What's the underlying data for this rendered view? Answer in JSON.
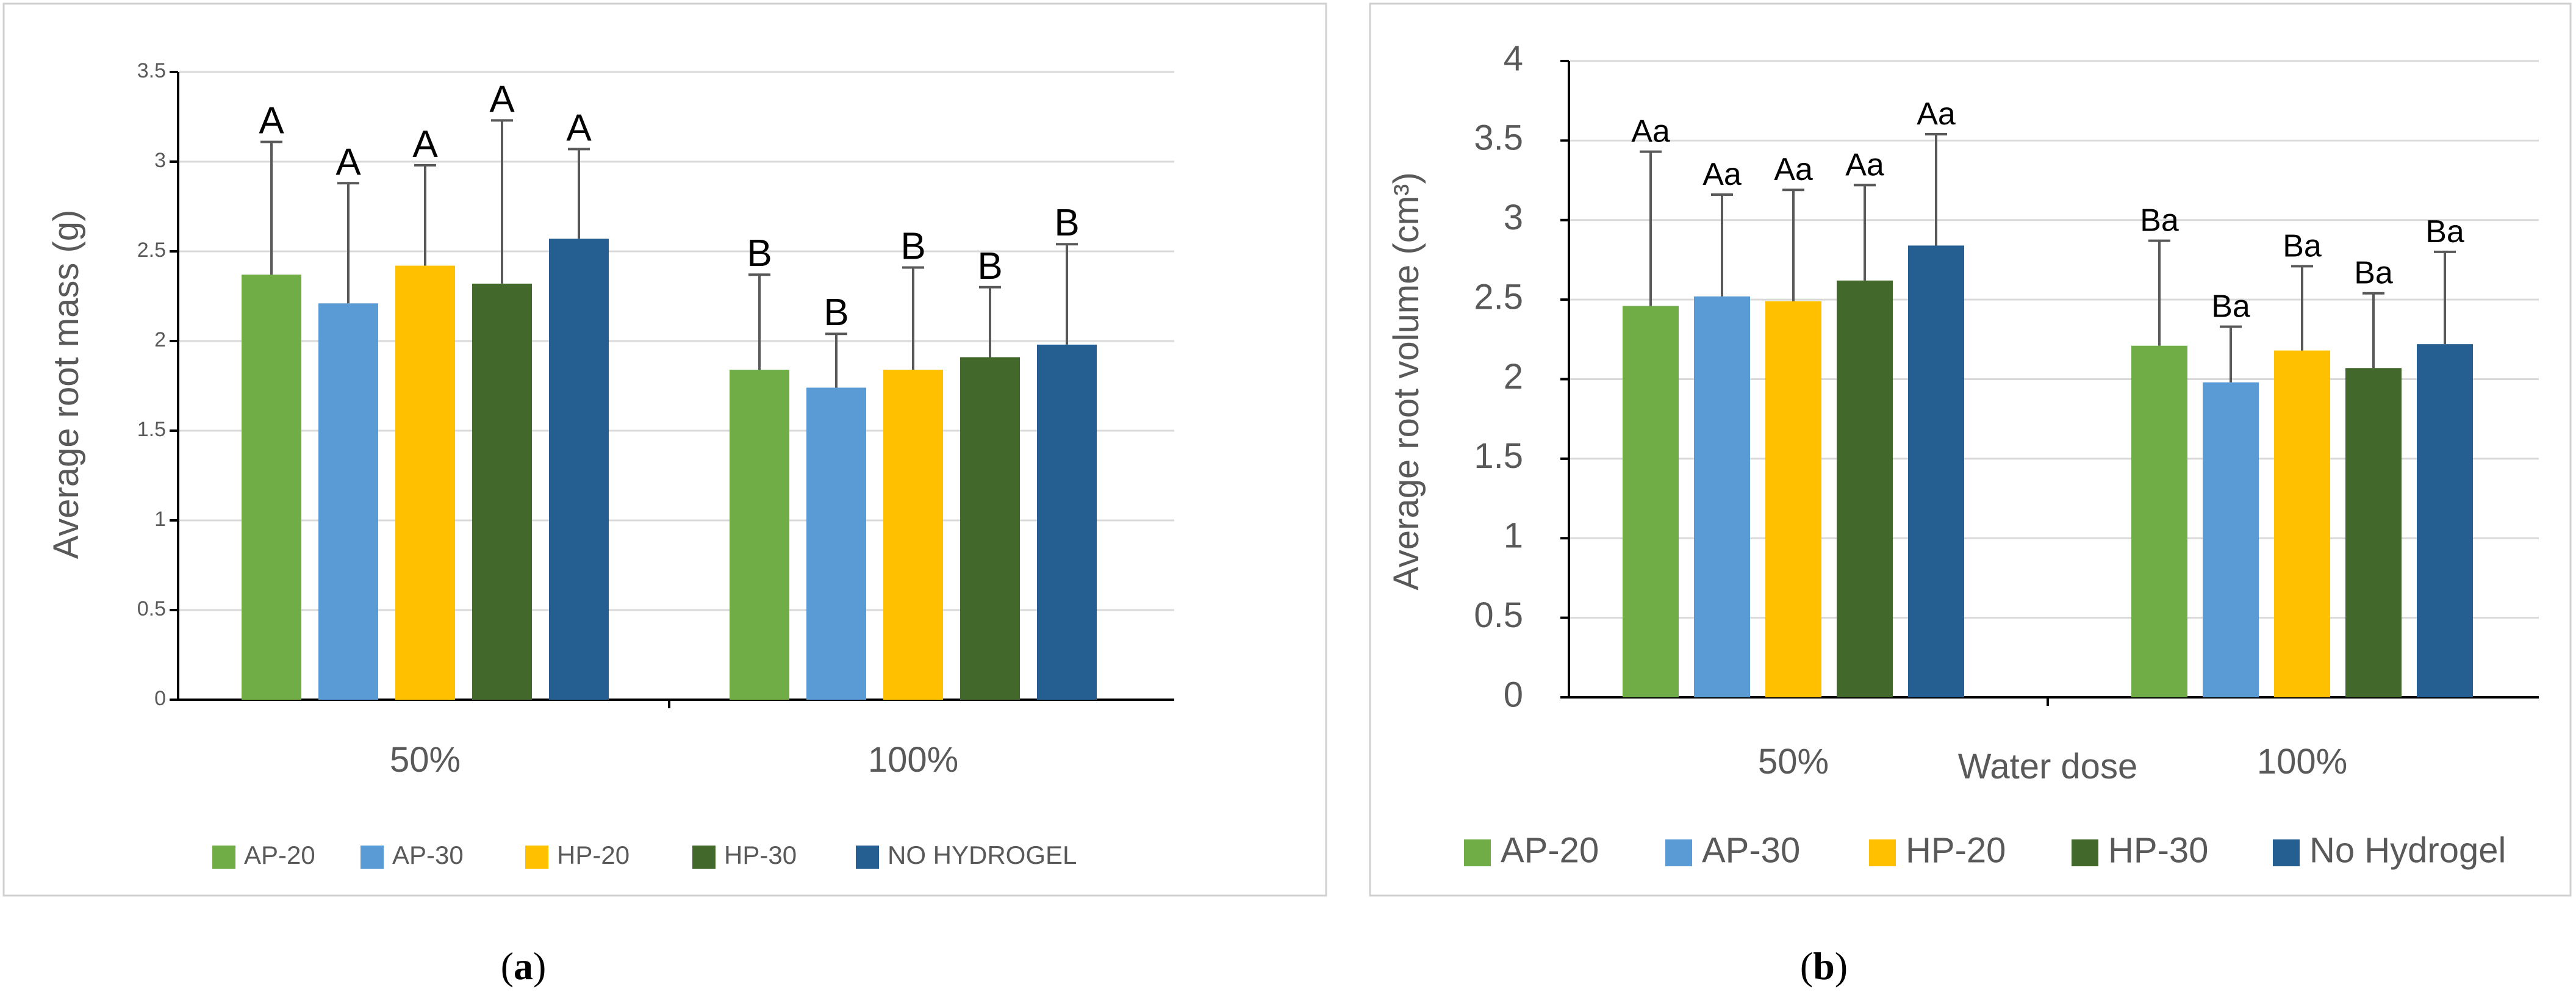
{
  "colors": {
    "AP-20": "#70ad47",
    "AP-30": "#5b9bd5",
    "HP-20": "#ffc000",
    "HP-30": "#43682b",
    "NO": "#255e91"
  },
  "chart_data": [
    {
      "type": "bar",
      "panel": "(a)",
      "ylabel": "Average root mass (g)",
      "xlabel": "",
      "ylim": [
        0,
        3.5
      ],
      "yticks": [
        "0",
        "0.5",
        "1",
        "1.5",
        "2",
        "2.5",
        "3",
        "3.5"
      ],
      "categories": [
        "50%",
        "100%"
      ],
      "legend_position": "bottom",
      "series": [
        {
          "name": "AP-20",
          "color_key": "AP-20",
          "values": [
            2.37,
            1.84
          ],
          "errors": [
            0.74,
            0.53
          ],
          "labels": [
            "A",
            "B"
          ]
        },
        {
          "name": "AP-30",
          "color_key": "AP-30",
          "values": [
            2.21,
            1.74
          ],
          "errors": [
            0.67,
            0.3
          ],
          "labels": [
            "A",
            "B"
          ]
        },
        {
          "name": "HP-20",
          "color_key": "HP-20",
          "values": [
            2.42,
            1.84
          ],
          "errors": [
            0.56,
            0.57
          ],
          "labels": [
            "A",
            "B"
          ]
        },
        {
          "name": "HP-30",
          "color_key": "HP-30",
          "values": [
            2.32,
            1.91
          ],
          "errors": [
            0.91,
            0.39
          ],
          "labels": [
            "A",
            "B"
          ]
        },
        {
          "name": "NO HYDROGEL",
          "color_key": "NO",
          "values": [
            2.57,
            1.98
          ],
          "errors": [
            0.5,
            0.56
          ],
          "labels": [
            "A",
            "B"
          ]
        }
      ]
    },
    {
      "type": "bar",
      "panel": "(b)",
      "ylabel": "Average root volume (cm³)",
      "xlabel": "Water dose",
      "ylim": [
        0,
        4
      ],
      "yticks": [
        "0",
        "0.5",
        "1",
        "1.5",
        "2",
        "2.5",
        "3",
        "3.5",
        "4"
      ],
      "categories": [
        "50%",
        "100%"
      ],
      "legend_position": "bottom",
      "series": [
        {
          "name": "AP-20",
          "color_key": "AP-20",
          "values": [
            2.46,
            2.21
          ],
          "errors": [
            0.97,
            0.66
          ],
          "labels": [
            "Aa",
            "Ba"
          ]
        },
        {
          "name": "AP-30",
          "color_key": "AP-30",
          "values": [
            2.52,
            1.98
          ],
          "errors": [
            0.64,
            0.35
          ],
          "labels": [
            "Aa",
            "Ba"
          ]
        },
        {
          "name": "HP-20",
          "color_key": "HP-20",
          "values": [
            2.49,
            2.18
          ],
          "errors": [
            0.7,
            0.53
          ],
          "labels": [
            "Aa",
            "Ba"
          ]
        },
        {
          "name": "HP-30",
          "color_key": "HP-30",
          "values": [
            2.62,
            2.07
          ],
          "errors": [
            0.6,
            0.47
          ],
          "labels": [
            "Aa",
            "Ba"
          ]
        },
        {
          "name": "No Hydrogel",
          "color_key": "NO",
          "values": [
            2.84,
            2.22
          ],
          "errors": [
            0.7,
            0.58
          ],
          "labels": [
            "Aa",
            "Ba"
          ]
        }
      ]
    }
  ]
}
